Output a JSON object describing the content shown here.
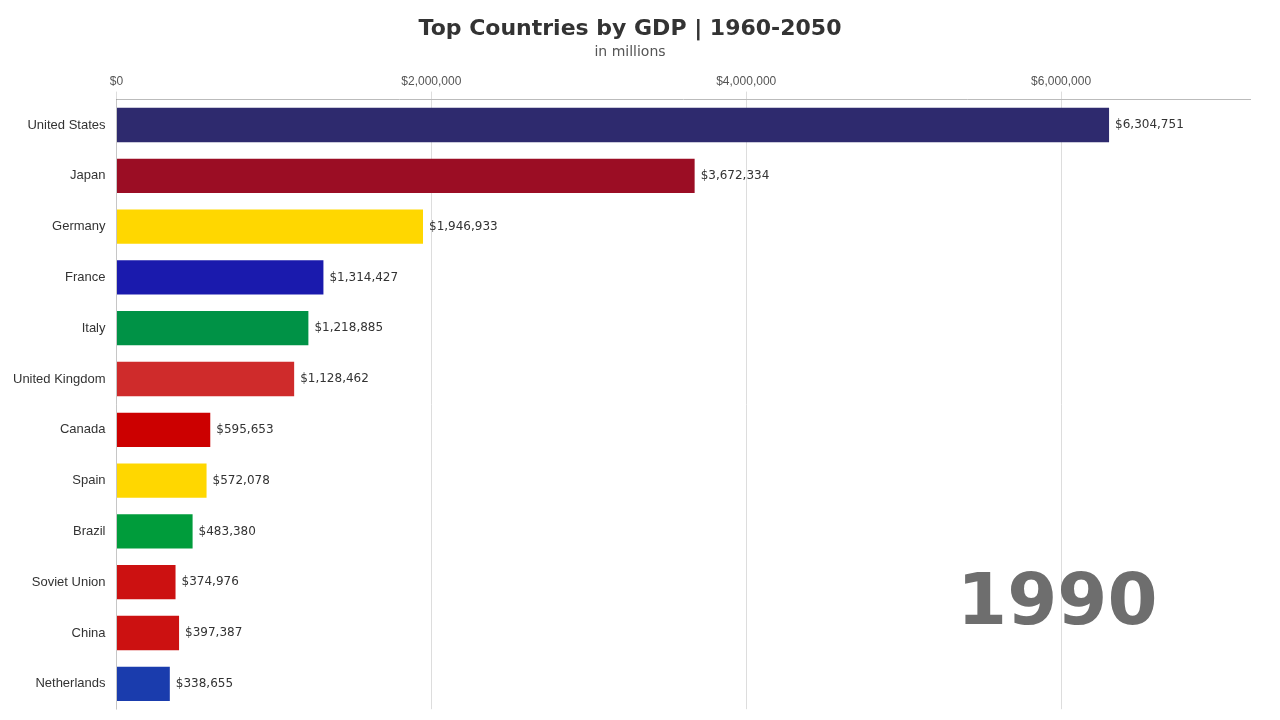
{
  "chart_data": {
    "type": "bar",
    "orientation": "horizontal",
    "title": "Top Countries by GDP | 1960-2050",
    "subtitle": "in millions",
    "annotation": "1990",
    "categories": [
      "United States",
      "Japan",
      "Germany",
      "France",
      "Italy",
      "United Kingdom",
      "Canada",
      "Spain",
      "Brazil",
      "Soviet Union",
      "China",
      "Netherlands"
    ],
    "values": [
      6304751,
      3672334,
      1946933,
      1314427,
      1218885,
      1128462,
      595653,
      572078,
      483380,
      374976,
      397387,
      338655
    ],
    "value_labels": [
      "$6,304,751",
      "$3,672,334",
      "$1,946,933",
      "$1,314,427",
      "$1,218,885",
      "$1,128,462",
      "$595,653",
      "$572,078",
      "$483,380",
      "$374,976",
      "$397,387",
      "$338,655"
    ],
    "colors": [
      "#2e2a6e",
      "#9b0d24",
      "#FFD700",
      "#1a1aad",
      "#009246",
      "#cf2b2b",
      "#cc0000",
      "#FFD700",
      "#009c3b",
      "#cc1111",
      "#cc1111",
      "#1a3cad"
    ],
    "xlim": [
      0,
      7200000
    ],
    "xticks": [
      {
        "value": 0,
        "label": "$0"
      },
      {
        "value": 2000000,
        "label": "$2,000,000"
      },
      {
        "value": 4000000,
        "label": "$4,000,000"
      },
      {
        "value": 6000000,
        "label": "$6,000,000"
      }
    ],
    "grid": true,
    "data_labels": true
  }
}
